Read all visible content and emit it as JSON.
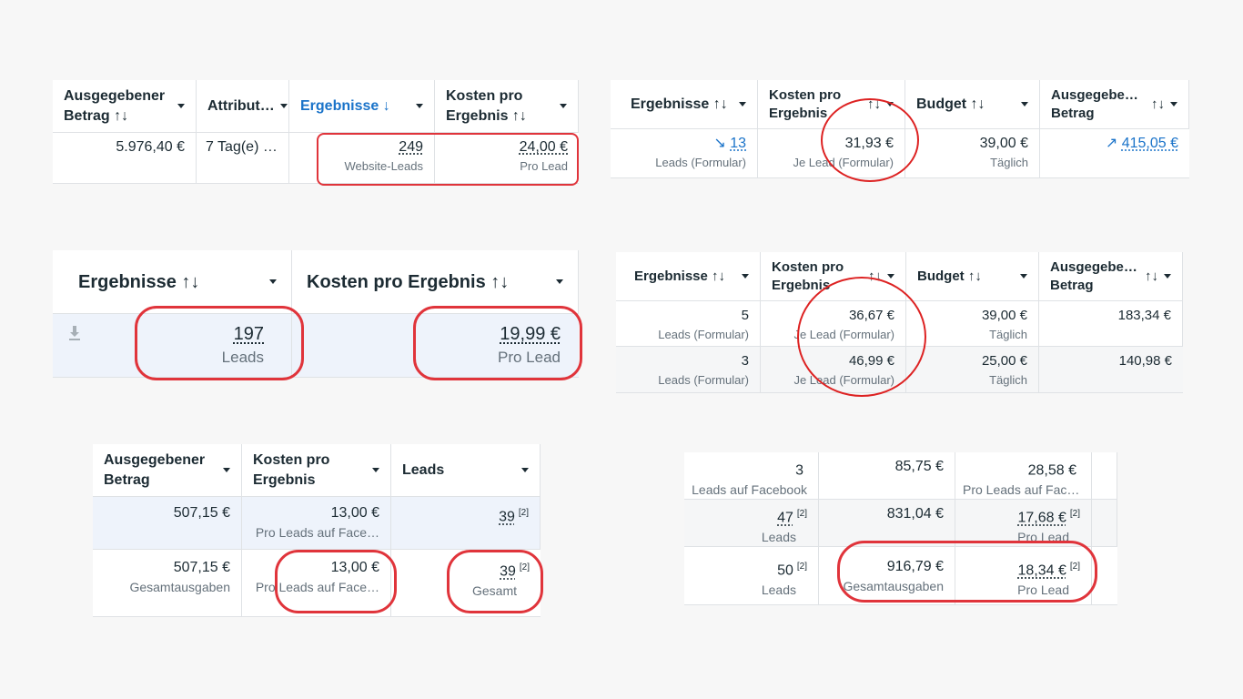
{
  "t1": {
    "headers": {
      "spent": "Ausgegebener Betrag ↑↓",
      "attr": "Attribut…",
      "results": "Ergebnisse ↓",
      "cpr": "Kosten pro Ergebnis ↑↓"
    },
    "row": {
      "spent": "5.976,40 €",
      "attr": "7 Tag(e) …",
      "results": "249",
      "results_sub": "Website-Leads",
      "cpr": "24,00 €",
      "cpr_sub": "Pro Lead"
    }
  },
  "t2": {
    "headers": {
      "results": "Ergebnisse ↑↓",
      "cpr": "Kosten pro Ergebnis",
      "cpr_sort": "↑↓",
      "budget": "Budget ↑↓",
      "spent": "Ausgegebe… Betrag",
      "spent_sort": "↑↓"
    },
    "row": {
      "results": "13",
      "results_sub": "Leads (Formular)",
      "cpr": "31,93 €",
      "cpr_sub": "Je Lead (Formular)",
      "budget": "39,00 €",
      "budget_sub": "Täglich",
      "spent": "415,05 €"
    },
    "colors": {
      "link": "#1a73c9"
    }
  },
  "t3": {
    "headers": {
      "results": "Ergebnisse ↑↓",
      "cpr": "Kosten pro Ergebnis ↑↓"
    },
    "row": {
      "results": "197",
      "results_sub": "Leads",
      "cpr": "19,99 €",
      "cpr_sub": "Pro Lead"
    }
  },
  "t4": {
    "headers": {
      "results": "Ergebnisse ↑↓",
      "cpr": "Kosten pro Ergebnis",
      "cpr_sort": "↑↓",
      "budget": "Budget ↑↓",
      "spent": "Ausgegebe… Betrag",
      "spent_sort": "↑↓"
    },
    "rows": [
      {
        "results": "5",
        "results_sub": "Leads (Formular)",
        "cpr": "36,67 €",
        "cpr_sub": "Je Lead (Formular)",
        "budget": "39,00 €",
        "budget_sub": "Täglich",
        "spent": "183,34 €"
      },
      {
        "results": "3",
        "results_sub": "Leads (Formular)",
        "cpr": "46,99 €",
        "cpr_sub": "Je Lead (Formular)",
        "budget": "25,00 €",
        "budget_sub": "Täglich",
        "spent": "140,98 €"
      }
    ]
  },
  "t5": {
    "headers": {
      "spent": "Ausgegebener Betrag",
      "cpr": "Kosten pro Ergebnis",
      "leads": "Leads"
    },
    "rows": [
      {
        "spent": "507,15 €",
        "spent_sub": "",
        "cpr": "13,00 €",
        "cpr_sub": "Pro Leads auf Face…",
        "leads": "39",
        "leads_sup": "[2]",
        "leads_sub": ""
      },
      {
        "spent": "507,15 €",
        "spent_sub": "Gesamtausgaben",
        "cpr": "13,00 €",
        "cpr_sub": "Pro Leads auf Face…",
        "leads": "39",
        "leads_sup": "[2]",
        "leads_sub": "Gesamt"
      }
    ]
  },
  "t6": {
    "rows": [
      {
        "a": "3",
        "a_sup": "",
        "a_sub": "Leads auf Facebook",
        "b": "85,75 €",
        "b_sub": "",
        "c": "28,58 €",
        "c_sup": "",
        "c_sub": "Pro Leads auf Face…"
      },
      {
        "a": "47",
        "a_sup": "[2]",
        "a_sub": "Leads",
        "b": "831,04 €",
        "b_sub": "",
        "c": "17,68 €",
        "c_sup": "[2]",
        "c_sub": "Pro Lead"
      },
      {
        "a": "50",
        "a_sup": "[2]",
        "a_sub": "Leads",
        "b": "916,79 €",
        "b_sub": "Gesamtausgaben",
        "c": "18,34 €",
        "c_sup": "[2]",
        "c_sub": "Pro Lead"
      }
    ]
  },
  "colors": {
    "highlight_red": "#e0343b",
    "text": "#1c2b33",
    "muted": "#65717b",
    "row_highlight": "#eef3fb"
  },
  "icons": {
    "sort": "sort-arrows-icon",
    "dropdown": "caret-down-icon",
    "download": "download-icon",
    "trend_down": "trend-down-icon",
    "trend_up": "trend-up-icon"
  }
}
